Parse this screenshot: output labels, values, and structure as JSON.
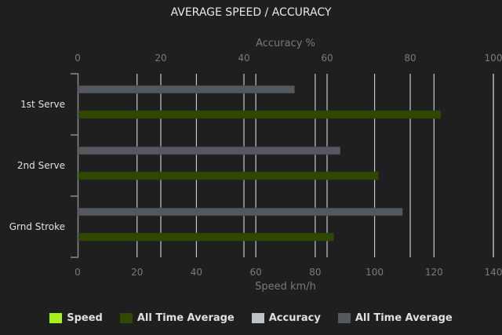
{
  "chart_data": {
    "type": "bar",
    "orientation": "horizontal",
    "title": "AVERAGE SPEED / ACCURACY",
    "categories": [
      "1st Serve",
      "2nd Serve",
      "Grnd Stroke"
    ],
    "top_axis": {
      "label": "Accuracy %",
      "range": [
        0,
        100
      ],
      "ticks": [
        "0",
        "20",
        "40",
        "60",
        "80",
        "100"
      ]
    },
    "bottom_axis": {
      "label": "Speed km/h",
      "range": [
        0,
        140
      ],
      "ticks": [
        "0",
        "20",
        "40",
        "60",
        "80",
        "100",
        "120",
        "140"
      ]
    },
    "series": [
      {
        "name": "All Time Average",
        "axis": "accuracy",
        "color": "#545960",
        "values": [
          52,
          63,
          78
        ]
      },
      {
        "name": "All Time Average",
        "axis": "speed",
        "color": "#2f4a00",
        "values": [
          122,
          101,
          86
        ]
      }
    ],
    "grid": true,
    "legend": {
      "position": "bottom",
      "items": [
        {
          "label": "Speed",
          "color": "#a8f01c"
        },
        {
          "label": "All Time Average",
          "color": "#2f4a00"
        },
        {
          "label": "Accuracy",
          "color": "#c0c3c6"
        },
        {
          "label": "All Time Average",
          "color": "#545960"
        }
      ]
    }
  }
}
